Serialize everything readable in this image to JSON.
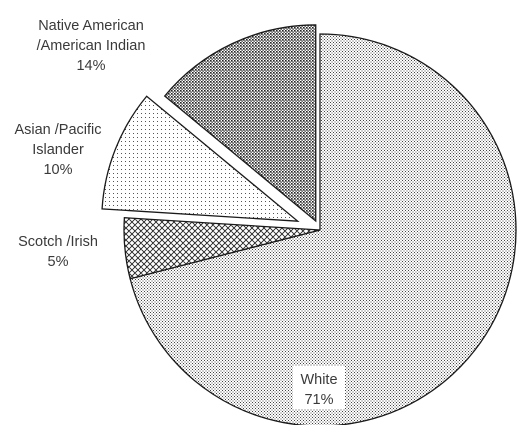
{
  "chart_data": {
    "type": "pie",
    "slices": [
      {
        "category": "White",
        "value": 71,
        "value_label": "71%",
        "label_lines": [
          "White"
        ],
        "pattern": "dense-dots",
        "exploded": false
      },
      {
        "category": "Scotch /Irish",
        "value": 5,
        "value_label": "5%",
        "label_lines": [
          "Scotch /Irish"
        ],
        "pattern": "crosshatch",
        "exploded": true
      },
      {
        "category": "Asian /Pacific Islander",
        "value": 10,
        "value_label": "10%",
        "label_lines": [
          "Asian /Pacific",
          "Islander"
        ],
        "pattern": "sparse-dots",
        "exploded": true
      },
      {
        "category": "Native American /American Indian",
        "value": 14,
        "value_label": "14%",
        "label_lines": [
          "Native American",
          "/American Indian"
        ],
        "pattern": "medium-dots",
        "exploded": true
      }
    ],
    "start_angle_deg": 0,
    "direction": "clockwise",
    "legend": "none",
    "colors": {
      "stroke": "#1a1a1a",
      "text": "#3a3a3a",
      "pattern_fill": "#333333"
    }
  }
}
